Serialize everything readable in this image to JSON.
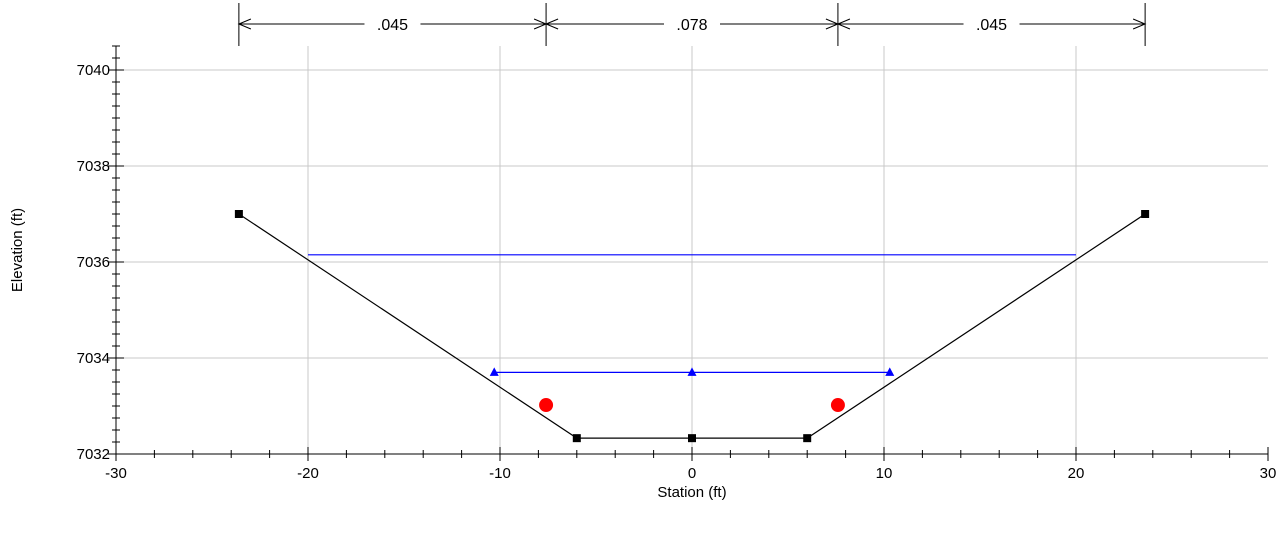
{
  "chart_data": {
    "type": "line",
    "xlabel": "Station (ft)",
    "ylabel": "Elevation (ft)",
    "xlim": [
      -30,
      30
    ],
    "ylim": [
      7032,
      7040.5
    ],
    "x_ticks": [
      -30,
      -20,
      -10,
      0,
      10,
      20,
      30
    ],
    "y_ticks": [
      7032,
      7034,
      7036,
      7038,
      7040
    ],
    "grid": true,
    "series": [
      {
        "role": "ground",
        "color": "#000000",
        "marker": "square",
        "points": [
          [
            -23.6,
            7037.0
          ],
          [
            -6.0,
            7032.33
          ],
          [
            0,
            7032.33
          ],
          [
            6.0,
            7032.33
          ],
          [
            23.6,
            7037.0
          ]
        ]
      },
      {
        "role": "water-surface-upper",
        "color": "#0000ff",
        "marker": "none",
        "points": [
          [
            -20.0,
            7036.15
          ],
          [
            20.0,
            7036.15
          ]
        ]
      },
      {
        "role": "water-surface-lower",
        "color": "#0000ff",
        "marker": "triangle",
        "points": [
          [
            -10.3,
            7033.7
          ],
          [
            0,
            7033.7
          ],
          [
            10.3,
            7033.7
          ]
        ]
      },
      {
        "role": "bank-stations",
        "color": "#ff0000",
        "marker": "circle",
        "points": [
          [
            -7.6,
            7033.02
          ],
          [
            7.6,
            7033.02
          ]
        ]
      }
    ],
    "roughness_segments": [
      {
        "from": -23.6,
        "to": -7.6,
        "label": ".045"
      },
      {
        "from": -7.6,
        "to": 7.6,
        "label": ".078"
      },
      {
        "from": 7.6,
        "to": 23.6,
        "label": ".045"
      }
    ]
  }
}
